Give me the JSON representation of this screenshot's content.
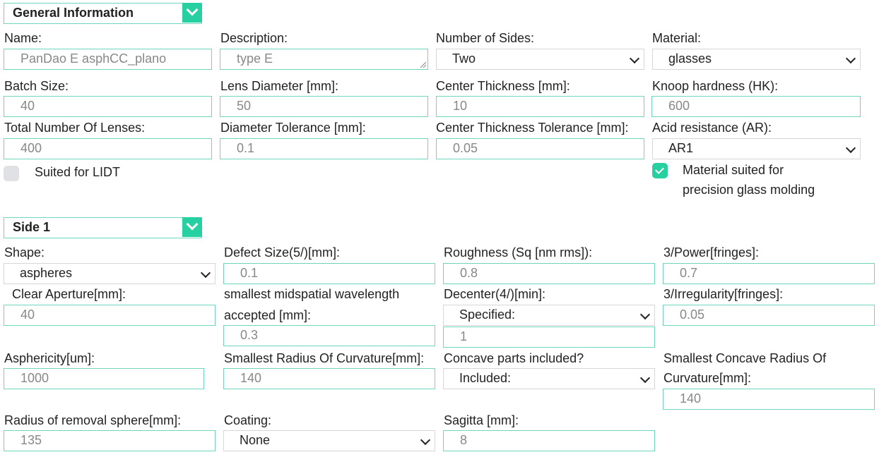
{
  "general": {
    "title": "General Information",
    "name_label": "Name:",
    "name_value": "PanDao E asphCC_plano",
    "description_label": "Description:",
    "description_value": "type E",
    "sides_label": "Number of Sides:",
    "sides_value": "Two",
    "material_label": "Material:",
    "material_value": "glasses",
    "batch_label": "Batch Size:",
    "batch_value": "40",
    "diameter_label": "Lens Diameter [mm]:",
    "diameter_value": "50",
    "thickness_label": "Center Thickness [mm]:",
    "thickness_value": "10",
    "knoop_label": "Knoop hardness (HK):",
    "knoop_value": "600",
    "total_label": "Total Number Of Lenses:",
    "total_value": "400",
    "dtol_label": "Diameter Tolerance [mm]:",
    "dtol_value": "0.1",
    "ttol_label": "Center Thickness Tolerance [mm]:",
    "ttol_value": "0.05",
    "acid_label": "Acid resistance (AR):",
    "acid_value": "AR1",
    "lidt_label": "Suited for LIDT",
    "lidt_checked": false,
    "pgm_label_1": "Material suited for",
    "pgm_label_2": "precision glass molding",
    "pgm_checked": true
  },
  "side1": {
    "title": "Side 1",
    "shape_label": "Shape:",
    "shape_value": "aspheres",
    "defect_label": "Defect Size(5/)[mm]:",
    "defect_value": "0.1",
    "rough_label": "Roughness (Sq [nm rms]):",
    "rough_value": "0.8",
    "power_label": "3/Power[fringes]:",
    "power_value": "0.7",
    "aperture_label": "Clear Aperture[mm]:",
    "aperture_value": "40",
    "midspatial_label_1": "smallest midspatial wavelength",
    "midspatial_label_2": "accepted [mm]:",
    "midspatial_value": "0.3",
    "decenter_label": "Decenter(4/)[min]:",
    "decenter_select": "Specified:",
    "decenter_value": "1",
    "irreg_label": "3/Irregularity[fringes]:",
    "irreg_value": "0.05",
    "asph_label": "Asphericity[um]:",
    "asph_value": "1000",
    "radius_label": "Smallest Radius Of Curvature[mm]:",
    "radius_value": "140",
    "concave_label": "Concave parts included?",
    "concave_value": "Included:",
    "ccradius_label_1": "Smallest Concave Radius Of",
    "ccradius_label_2": "Curvature[mm]:",
    "ccradius_value": "140",
    "removal_label": "Radius of removal sphere[mm]:",
    "removal_value": "135",
    "coating_label": "Coating:",
    "coating_value": "None",
    "sagitta_label": "Sagitta [mm]:",
    "sagitta_value": "8"
  },
  "colors": {
    "accent": "#26d0a0",
    "input_border": "#6fd6bd"
  }
}
